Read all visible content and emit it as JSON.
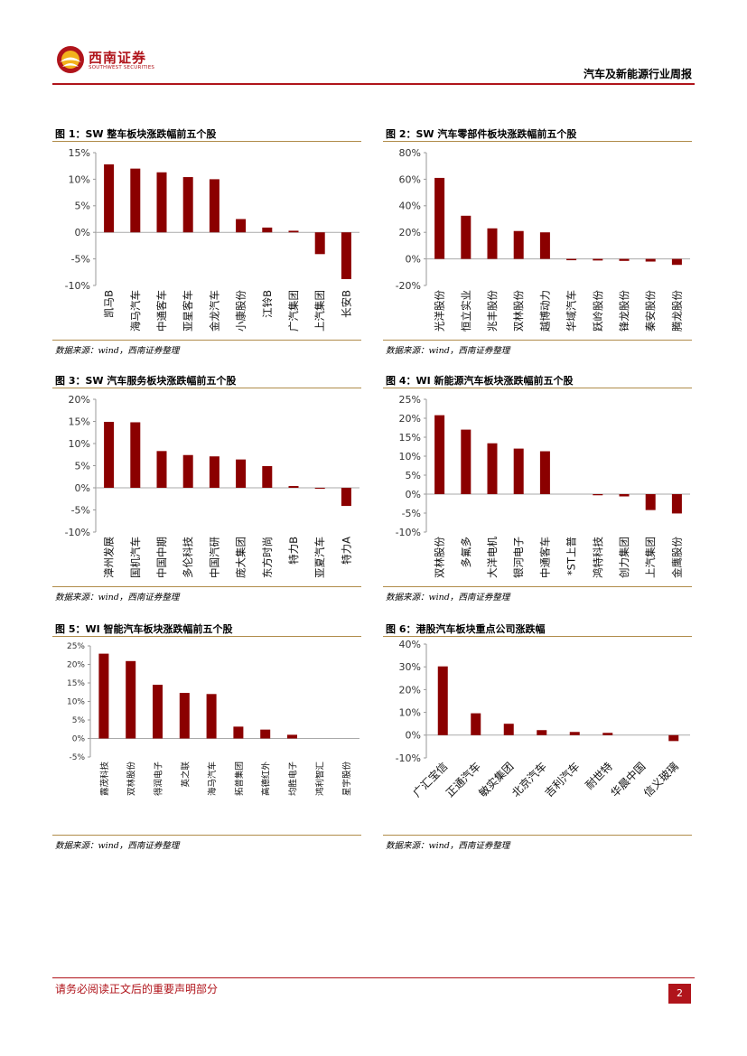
{
  "header": {
    "company_name": "西南证券",
    "company_name_en": "SOUTHWEST SECURITIES",
    "report_title": "汽车及新能源行业周报",
    "brand_color": "#b0141b"
  },
  "footer": {
    "disclaimer": "请务必阅读正文后的重要声明部分",
    "page_number": "2"
  },
  "figures": [
    {
      "title": "图 1：SW 整车板块涨跌幅前五个股",
      "source": "数据来源：wind，西南证券整理"
    },
    {
      "title": "图 2：SW 汽车零部件板块涨跌幅前五个股",
      "source": "数据来源：wind，西南证券整理"
    },
    {
      "title": "图 3：SW 汽车服务板块涨跌幅前五个股",
      "source": "数据来源：wind，西南证券整理"
    },
    {
      "title": "图 4：WI 新能源汽车板块涨跌幅前五个股",
      "source": "数据来源：wind，西南证券整理"
    },
    {
      "title": "图 5：WI 智能汽车板块涨跌幅前五个股",
      "source": "数据来源：wind，西南证券整理"
    },
    {
      "title": "图 6：港股汽车板块重点公司涨跌幅",
      "source": "数据来源：wind，西南证券整理"
    }
  ],
  "chart_data": [
    {
      "type": "bar",
      "title": "图 1：SW 整车板块涨跌幅前五个股",
      "categories": [
        "凯马B",
        "海马汽车",
        "中通客车",
        "亚星客车",
        "金龙汽车",
        "小康股份",
        "江铃B",
        "广汽集团",
        "上汽集团",
        "长安B"
      ],
      "values": [
        12.8,
        12.0,
        11.3,
        10.4,
        10.0,
        2.5,
        0.9,
        0.3,
        -4.1,
        -8.8
      ],
      "ylim": [
        -10,
        15
      ],
      "yticks": [
        15,
        10,
        5,
        0,
        -5,
        -10
      ],
      "ytick_labels": [
        "15%",
        "10%",
        "5%",
        "0%",
        "-5%",
        "-10%"
      ],
      "bar_color": "#8b0000"
    },
    {
      "type": "bar",
      "title": "图 2：SW 汽车零部件板块涨跌幅前五个股",
      "categories": [
        "光洋股份",
        "恒立实业",
        "兆丰股份",
        "双林股份",
        "越博动力",
        "华域汽车",
        "跃岭股份",
        "锋龙股份",
        "秦安股份",
        "腾龙股份"
      ],
      "values": [
        61,
        32.5,
        23,
        21,
        20,
        -1,
        -1.2,
        -1.5,
        -2,
        -4.5
      ],
      "ylim": [
        -20,
        80
      ],
      "yticks": [
        80,
        60,
        40,
        20,
        0,
        -20
      ],
      "ytick_labels": [
        "80%",
        "60%",
        "40%",
        "20%",
        "0%",
        "-20%"
      ],
      "bar_color": "#8b0000"
    },
    {
      "type": "bar",
      "title": "图 3：SW 汽车服务板块涨跌幅前五个股",
      "categories": [
        "漳州发展",
        "国机汽车",
        "中国中期",
        "多伦科技",
        "中国汽研",
        "庞大集团",
        "东方时尚",
        "特力B",
        "亚夏汽车",
        "特力A"
      ],
      "values": [
        14.9,
        14.8,
        8.3,
        7.4,
        7.1,
        6.4,
        4.9,
        0.4,
        -0.1,
        -4.1
      ],
      "ylim": [
        -10,
        20
      ],
      "yticks": [
        20,
        15,
        10,
        5,
        0,
        -5,
        -10
      ],
      "ytick_labels": [
        "20%",
        "15%",
        "10%",
        "5%",
        "0%",
        "-5%",
        "-10%"
      ],
      "bar_color": "#8b0000"
    },
    {
      "type": "bar",
      "title": "图 4：WI 新能源汽车板块涨跌幅前五个股",
      "categories": [
        "双林股份",
        "多氟多",
        "大洋电机",
        "银河电子",
        "中通客车",
        "*ST上普",
        "鸿特科技",
        "创力集团",
        "上汽集团",
        "金鹰股份"
      ],
      "values": [
        20.8,
        17.0,
        13.4,
        12.0,
        11.3,
        0,
        -0.3,
        -0.6,
        -4.2,
        -5.1
      ],
      "ylim": [
        -10,
        25
      ],
      "yticks": [
        25,
        20,
        15,
        10,
        5,
        0,
        -5,
        -10
      ],
      "ytick_labels": [
        "25%",
        "20%",
        "15%",
        "10%",
        "5%",
        "0%",
        "-5%",
        "-10%"
      ],
      "bar_color": "#8b0000"
    },
    {
      "type": "bar",
      "title": "图 5：WI 智能汽车板块涨跌幅前五个股",
      "categories": [
        "露茂科技",
        "双林股份",
        "得润电子",
        "英之联",
        "海马汽车",
        "拓普集团",
        "高德红外",
        "均胜电子",
        "鸿利智汇",
        "星宇股份"
      ],
      "values": [
        22.9,
        20.9,
        14.5,
        12.3,
        12.0,
        3.2,
        2.4,
        1.0,
        0,
        0
      ],
      "ylim": [
        -5,
        25
      ],
      "yticks": [
        25,
        20,
        15,
        10,
        5,
        0,
        -5
      ],
      "ytick_labels": [
        "25%",
        "20%",
        "15%",
        "10%",
        "5%",
        "0%",
        "-5%"
      ],
      "bar_color": "#8b0000"
    },
    {
      "type": "bar",
      "title": "图 6：港股汽车板块重点公司涨跌幅",
      "categories": [
        "广汇宝信",
        "正通汽车",
        "敏实集团",
        "北京汽车",
        "吉利汽车",
        "耐世特",
        "华晨中国",
        "信义玻璃"
      ],
      "values": [
        30.2,
        9.6,
        5.0,
        2.2,
        1.4,
        1.0,
        0,
        -2.6
      ],
      "ylim": [
        -10,
        40
      ],
      "yticks": [
        40,
        30,
        20,
        10,
        0,
        -10
      ],
      "ytick_labels": [
        "40%",
        "30%",
        "20%",
        "10%",
        "0%",
        "-10%"
      ],
      "bar_color": "#8b0000"
    }
  ]
}
